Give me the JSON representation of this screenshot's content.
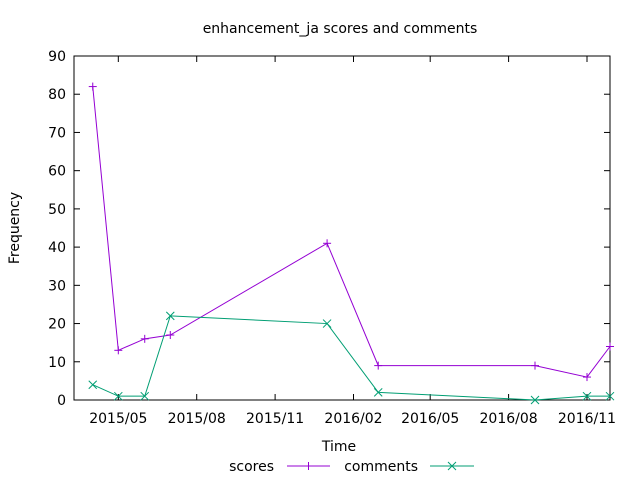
{
  "chart_data": {
    "type": "line",
    "title": "enhancement_ja scores and comments",
    "xlabel": "Time",
    "ylabel": "Frequency",
    "xlim": [
      "2015-03-10",
      "2016-11-28"
    ],
    "ylim": [
      0,
      90
    ],
    "yticks": [
      0,
      10,
      20,
      30,
      40,
      50,
      60,
      70,
      80,
      90
    ],
    "xticks": [
      {
        "date": "2015-05-01",
        "label": "2015/05"
      },
      {
        "date": "2015-08-01",
        "label": "2015/08"
      },
      {
        "date": "2015-11-01",
        "label": "2015/11"
      },
      {
        "date": "2016-02-01",
        "label": "2016/02"
      },
      {
        "date": "2016-05-01",
        "label": "2016/05"
      },
      {
        "date": "2016-08-01",
        "label": "2016/08"
      },
      {
        "date": "2016-11-01",
        "label": "2016/11"
      }
    ],
    "grid": false,
    "legend": "bottom-center",
    "series": [
      {
        "name": "scores",
        "color": "#9400d3",
        "marker": "plus",
        "points": [
          {
            "x": "2015-04-01",
            "y": 82
          },
          {
            "x": "2015-05-01",
            "y": 13
          },
          {
            "x": "2015-06-01",
            "y": 16
          },
          {
            "x": "2015-07-01",
            "y": 17
          },
          {
            "x": "2016-01-01",
            "y": 41
          },
          {
            "x": "2016-03-01",
            "y": 9
          },
          {
            "x": "2016-09-01",
            "y": 9
          },
          {
            "x": "2016-11-01",
            "y": 6
          },
          {
            "x": "2016-11-28",
            "y": 14
          }
        ]
      },
      {
        "name": "comments",
        "color": "#009e73",
        "marker": "cross",
        "points": [
          {
            "x": "2015-04-01",
            "y": 4
          },
          {
            "x": "2015-05-01",
            "y": 1
          },
          {
            "x": "2015-06-01",
            "y": 1
          },
          {
            "x": "2015-07-01",
            "y": 22
          },
          {
            "x": "2016-01-01",
            "y": 20
          },
          {
            "x": "2016-03-01",
            "y": 2
          },
          {
            "x": "2016-09-01",
            "y": 0
          },
          {
            "x": "2016-11-01",
            "y": 1
          },
          {
            "x": "2016-11-28",
            "y": 1
          }
        ]
      }
    ]
  }
}
